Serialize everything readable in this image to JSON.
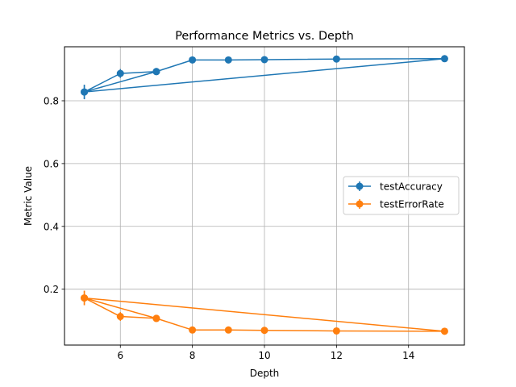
{
  "chart_data": {
    "type": "line",
    "title": "Performance Metrics vs. Depth",
    "xlabel": "Depth",
    "ylabel": "Metric Value",
    "x": [
      5,
      6,
      7,
      8,
      9,
      10,
      12,
      15,
      5,
      7
    ],
    "x_ticks": [
      6,
      8,
      10,
      12,
      14
    ],
    "y_ticks": [
      0.2,
      0.4,
      0.6,
      0.8
    ],
    "x_tick_labels": [
      "6",
      "8",
      "10",
      "12",
      "14"
    ],
    "y_tick_labels": [
      "0.2",
      "0.4",
      "0.6",
      "0.8"
    ],
    "xlim": [
      4.45,
      15.55
    ],
    "ylim": [
      0.022,
      0.972
    ],
    "grid": true,
    "legend_position": "center-right",
    "series": [
      {
        "name": "testAccuracy",
        "color": "#1f77b4",
        "values": [
          0.828,
          0.887,
          0.893,
          0.93,
          0.93,
          0.931,
          0.933,
          0.934,
          0.828,
          0.893
        ],
        "errors": [
          0.023,
          0.014,
          0.006,
          0.004,
          0.004,
          0.003,
          0.003,
          0.003,
          0.023,
          0.006
        ]
      },
      {
        "name": "testErrorRate",
        "color": "#ff7f0e",
        "values": [
          0.172,
          0.113,
          0.107,
          0.07,
          0.07,
          0.069,
          0.067,
          0.066,
          0.172,
          0.107
        ],
        "errors": [
          0.023,
          0.014,
          0.006,
          0.004,
          0.004,
          0.003,
          0.003,
          0.003,
          0.023,
          0.006
        ]
      }
    ]
  }
}
